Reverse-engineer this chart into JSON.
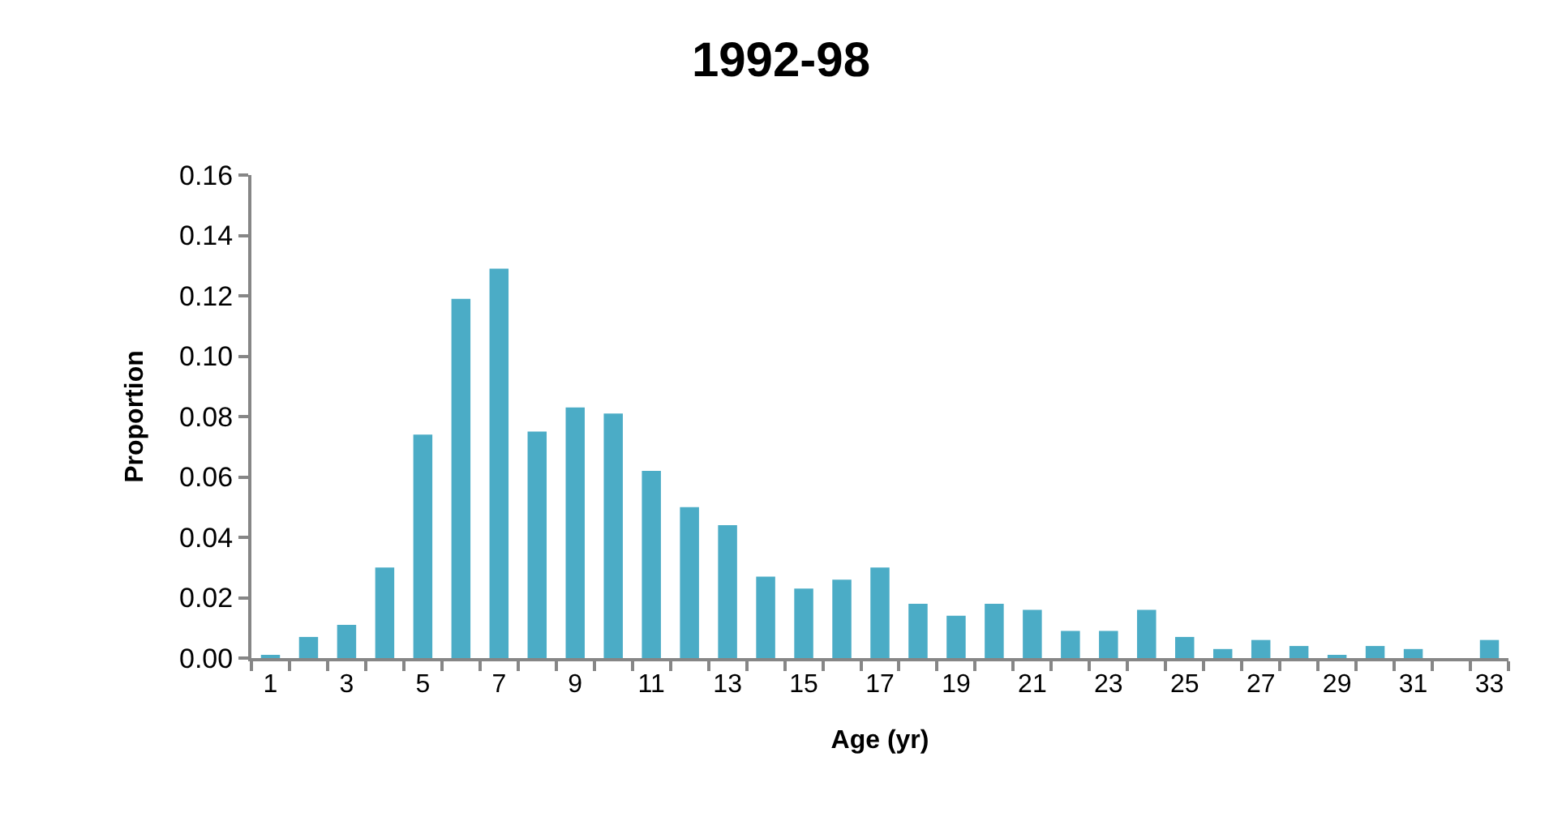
{
  "chart_data": {
    "type": "bar",
    "title": "1992-98",
    "xlabel": "Age (yr)",
    "ylabel": "Proportion",
    "x": [
      1,
      2,
      3,
      4,
      5,
      6,
      7,
      8,
      9,
      10,
      11,
      12,
      13,
      14,
      15,
      16,
      17,
      18,
      19,
      20,
      21,
      22,
      23,
      24,
      25,
      26,
      27,
      28,
      29,
      30,
      31,
      32,
      33
    ],
    "xlim": [
      0.5,
      33.5
    ],
    "xticks": [
      1,
      3,
      5,
      7,
      9,
      11,
      13,
      15,
      17,
      19,
      21,
      23,
      25,
      27,
      29,
      31,
      33
    ],
    "values": [
      0.001,
      0.007,
      0.011,
      0.03,
      0.074,
      0.119,
      0.129,
      0.075,
      0.083,
      0.081,
      0.062,
      0.05,
      0.044,
      0.027,
      0.023,
      0.026,
      0.03,
      0.018,
      0.014,
      0.018,
      0.016,
      0.009,
      0.009,
      0.016,
      0.007,
      0.003,
      0.006,
      0.004,
      0.001,
      0.004,
      0.003,
      0,
      0.006
    ],
    "color": "#4bacc6",
    "ylim": [
      0,
      0.16
    ],
    "yticks": [
      {
        "value": 0,
        "label": "0.00"
      },
      {
        "value": 0.02,
        "label": "0.02"
      },
      {
        "value": 0.04,
        "label": "0.04"
      },
      {
        "value": 0.06,
        "label": "0.06"
      },
      {
        "value": 0.08,
        "label": "0.08"
      },
      {
        "value": 0.1,
        "label": "0.10"
      },
      {
        "value": 0.12,
        "label": "0.12"
      },
      {
        "value": 0.14,
        "label": "0.14"
      },
      {
        "value": 0.16,
        "label": "0.16"
      }
    ]
  }
}
